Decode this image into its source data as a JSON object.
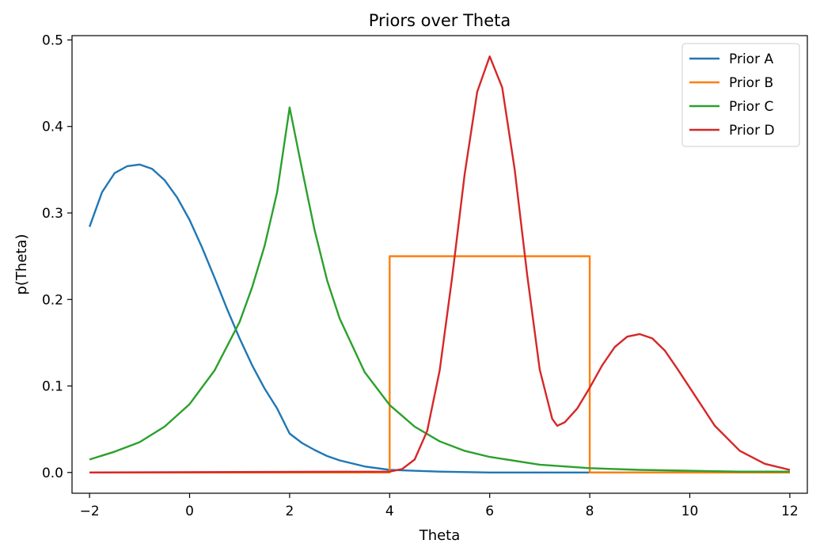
{
  "chart_data": {
    "type": "line",
    "title": "Priors over Theta",
    "xlabel": "Theta",
    "ylabel": "p(Theta)",
    "xlim": [
      -2.35,
      12.35
    ],
    "ylim": [
      -0.024,
      0.505
    ],
    "xticks": [
      -2,
      0,
      2,
      4,
      6,
      8,
      10,
      12
    ],
    "xtick_labels": [
      "−2",
      "0",
      "2",
      "4",
      "6",
      "8",
      "10",
      "12"
    ],
    "yticks": [
      0.0,
      0.1,
      0.2,
      0.3,
      0.4,
      0.5
    ],
    "ytick_labels": [
      "0.0",
      "0.1",
      "0.2",
      "0.3",
      "0.4",
      "0.5"
    ],
    "grid": false,
    "legend_position": "top-right",
    "series": [
      {
        "name": "Prior A",
        "color": "#1f77b4",
        "x": [
          -2,
          -1.75,
          -1.5,
          -1.25,
          -1,
          -0.75,
          -0.5,
          -0.25,
          0,
          0.25,
          0.5,
          0.75,
          1,
          1.25,
          1.5,
          1.75,
          2,
          2.25,
          2.5,
          2.75,
          3,
          3.5,
          4,
          5,
          6,
          7,
          8,
          9,
          10,
          11,
          12
        ],
        "y": [
          0.284,
          0.324,
          0.346,
          0.354,
          0.356,
          0.351,
          0.338,
          0.318,
          0.292,
          0.26,
          0.225,
          0.189,
          0.155,
          0.124,
          0.097,
          0.074,
          0.045,
          0.034,
          0.026,
          0.019,
          0.014,
          0.007,
          0.003,
          0.001,
          0.0,
          0.0,
          0.0,
          0.0,
          0.0,
          0.0,
          0.0
        ]
      },
      {
        "name": "Prior B",
        "color": "#ff7f0e",
        "x": [
          -2,
          4,
          4,
          8,
          8,
          12
        ],
        "y": [
          0.0,
          0.0,
          0.25,
          0.25,
          0.0,
          0.0
        ]
      },
      {
        "name": "Prior C",
        "color": "#2ca02c",
        "x": [
          -2,
          -1.5,
          -1,
          -0.5,
          0,
          0.5,
          1,
          1.25,
          1.5,
          1.75,
          2,
          2.25,
          2.5,
          2.75,
          3,
          3.5,
          4,
          4.5,
          5,
          5.5,
          6,
          7,
          8,
          9,
          10,
          11,
          12
        ],
        "y": [
          0.015,
          0.024,
          0.035,
          0.053,
          0.079,
          0.118,
          0.174,
          0.214,
          0.262,
          0.324,
          0.422,
          0.35,
          0.28,
          0.222,
          0.178,
          0.116,
          0.078,
          0.053,
          0.036,
          0.025,
          0.018,
          0.009,
          0.005,
          0.003,
          0.002,
          0.001,
          0.001
        ]
      },
      {
        "name": "Prior D",
        "color": "#d62728",
        "x": [
          -2,
          4,
          4.25,
          4.5,
          4.75,
          5,
          5.25,
          5.5,
          5.75,
          6,
          6.25,
          6.5,
          6.75,
          7,
          7.25,
          7.35,
          7.5,
          7.75,
          8,
          8.25,
          8.5,
          8.75,
          9,
          9.25,
          9.5,
          9.75,
          10,
          10.5,
          11,
          11.5,
          12
        ],
        "y": [
          0.0,
          0.001,
          0.004,
          0.015,
          0.048,
          0.118,
          0.226,
          0.345,
          0.44,
          0.481,
          0.445,
          0.35,
          0.228,
          0.119,
          0.062,
          0.054,
          0.058,
          0.074,
          0.098,
          0.124,
          0.145,
          0.157,
          0.16,
          0.155,
          0.141,
          0.12,
          0.098,
          0.054,
          0.025,
          0.01,
          0.003
        ]
      }
    ]
  }
}
